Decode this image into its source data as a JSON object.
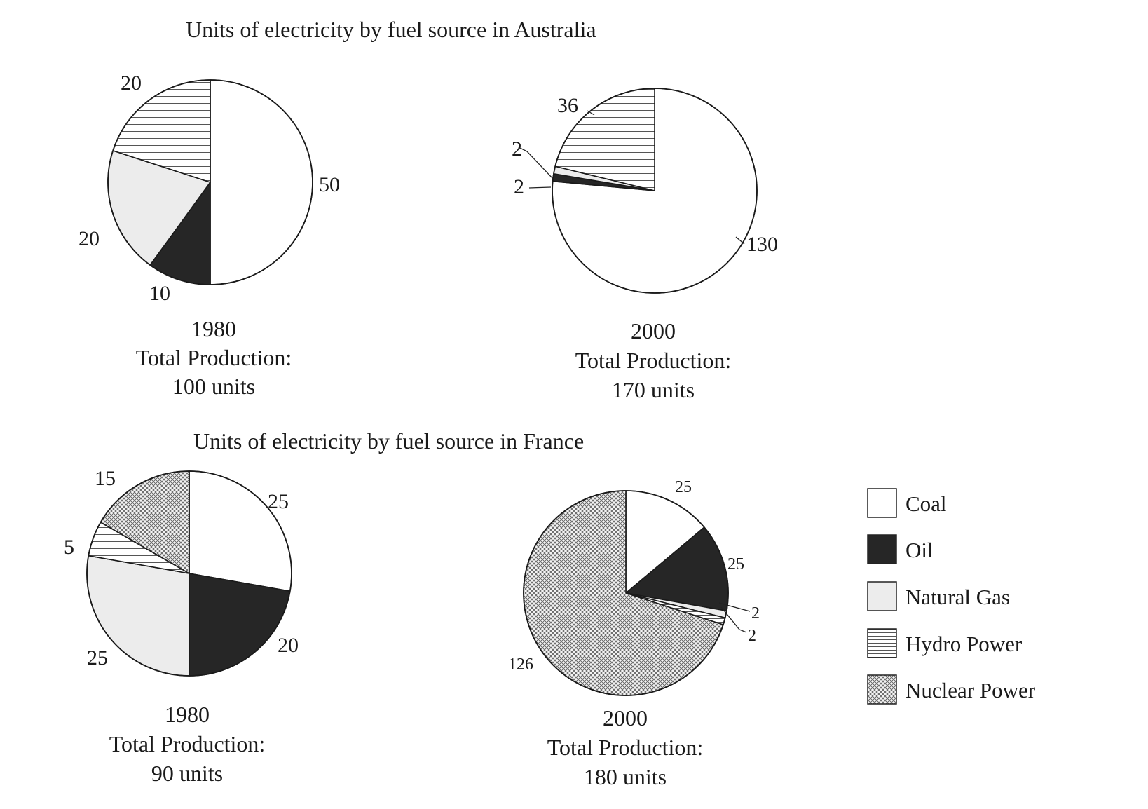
{
  "fills": {
    "Coal": "#ffffff",
    "Oil": "#262626",
    "Natural Gas": "#ececec",
    "Hydro Power": "hatch-horizontal",
    "Nuclear Power": "hatch-cross"
  },
  "legend": [
    "Coal",
    "Oil",
    "Natural Gas",
    "Hydro Power",
    "Nuclear Power"
  ],
  "chart_data": [
    {
      "type": "pie",
      "title": "Units of electricity by fuel source in Australia",
      "year": "1980",
      "caption_label": "Total Production:",
      "total": "100 units",
      "slices": [
        {
          "name": "Coal",
          "value": 50,
          "label": "50"
        },
        {
          "name": "Oil",
          "value": 10,
          "label": "10"
        },
        {
          "name": "Natural Gas",
          "value": 20,
          "label": "20"
        },
        {
          "name": "Hydro Power",
          "value": 20,
          "label": "20"
        }
      ]
    },
    {
      "type": "pie",
      "title": "",
      "year": "2000",
      "caption_label": "Total Production:",
      "total": "170 units",
      "slices": [
        {
          "name": "Coal",
          "value": 130,
          "label": "130"
        },
        {
          "name": "Oil",
          "value": 2,
          "label": "2"
        },
        {
          "name": "Natural Gas",
          "value": 2,
          "label": "2"
        },
        {
          "name": "Hydro Power",
          "value": 36,
          "label": "36"
        }
      ]
    },
    {
      "type": "pie",
      "title": "Units of electricity by fuel source in France",
      "year": "1980",
      "caption_label": "Total Production:",
      "total": "90 units",
      "slices": [
        {
          "name": "Coal",
          "value": 25,
          "label": "25"
        },
        {
          "name": "Oil",
          "value": 20,
          "label": "20"
        },
        {
          "name": "Natural Gas",
          "value": 25,
          "label": "25"
        },
        {
          "name": "Hydro Power",
          "value": 5,
          "label": "5"
        },
        {
          "name": "Nuclear Power",
          "value": 15,
          "label": "15"
        }
      ]
    },
    {
      "type": "pie",
      "title": "",
      "year": "2000",
      "caption_label": "Total Production:",
      "total": "180 units",
      "slices": [
        {
          "name": "Coal",
          "value": 25,
          "label": "25"
        },
        {
          "name": "Oil",
          "value": 25,
          "label": "25"
        },
        {
          "name": "Natural Gas",
          "value": 2,
          "label": "2"
        },
        {
          "name": "Hydro Power",
          "value": 2,
          "label": "2"
        },
        {
          "name": "Nuclear Power",
          "value": 126,
          "label": "126"
        }
      ]
    }
  ]
}
